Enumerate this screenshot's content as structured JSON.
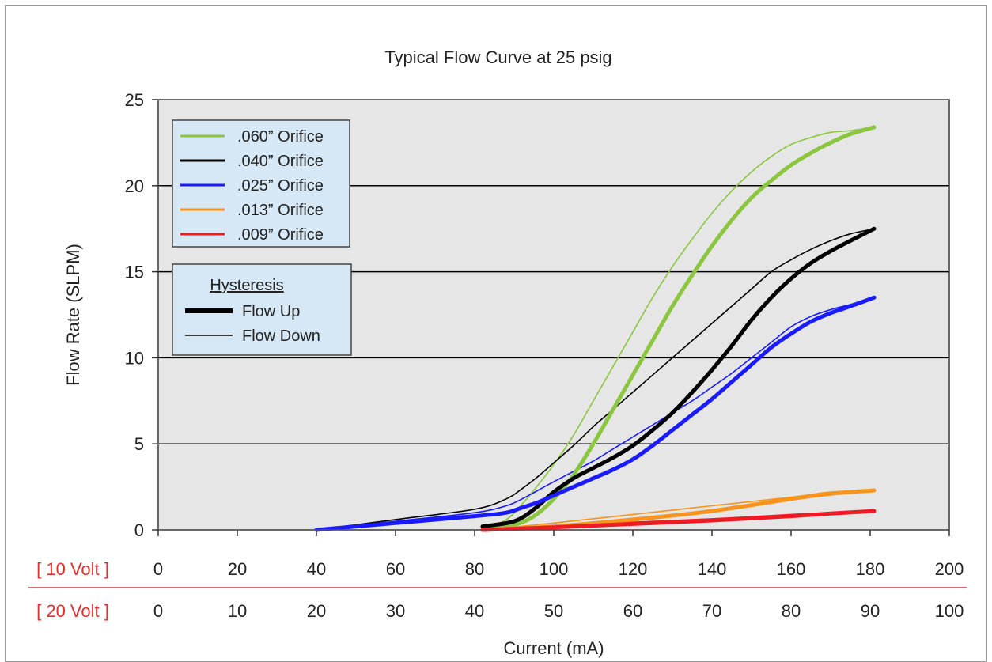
{
  "chart_data": {
    "type": "line",
    "title": "Typical Flow Curve at 25 psig",
    "xlabel": "Current (mA)",
    "ylabel": "Flow Rate (SLPM)",
    "xlim": [
      0,
      200
    ],
    "ylim": [
      0,
      25
    ],
    "x_ticks": [
      0,
      20,
      40,
      60,
      80,
      100,
      120,
      140,
      160,
      180,
      200
    ],
    "y_ticks": [
      0,
      5,
      10,
      15,
      20,
      25
    ],
    "grid": "horizontal",
    "secondary_scales": [
      {
        "label": "[ 10 Volt ]",
        "ticks": [
          "0",
          "20",
          "40",
          "60",
          "80",
          "100",
          "120",
          "140",
          "160",
          "180",
          "200"
        ]
      },
      {
        "label": "[ 20 Volt ]",
        "ticks": [
          "0",
          "10",
          "20",
          "30",
          "40",
          "50",
          "60",
          "70",
          "80",
          "90",
          "100"
        ]
      }
    ],
    "legend": {
      "placement": "top-left",
      "entries": [
        {
          "name": ".060” Orifice",
          "color": "#8cc63f"
        },
        {
          "name": ".040” Orifice",
          "color": "#000000"
        },
        {
          "name": ".025” Orifice",
          "color": "#1a1aff"
        },
        {
          "name": ".013” Orifice",
          "color": "#f7941d"
        },
        {
          "name": ".009” Orifice",
          "color": "#ed1c24"
        }
      ]
    },
    "hysteresis_legend": {
      "title": "Hysteresis",
      "entries": [
        {
          "name": "Flow Up",
          "style": "thick"
        },
        {
          "name": "Flow Down",
          "style": "thin"
        }
      ]
    },
    "series": [
      {
        "name": ".060” Orifice",
        "direction": "Flow Up",
        "color": "#8cc63f",
        "x": [
          82,
          90,
          95,
          100,
          105,
          110,
          115,
          120,
          125,
          130,
          135,
          140,
          145,
          150,
          155,
          160,
          165,
          170,
          175,
          181
        ],
        "y": [
          0,
          0.3,
          0.8,
          1.8,
          3.2,
          5.0,
          7.0,
          9.0,
          11.0,
          13.0,
          14.8,
          16.5,
          18.0,
          19.3,
          20.3,
          21.2,
          21.9,
          22.5,
          23.0,
          23.4
        ]
      },
      {
        "name": ".060” Orifice",
        "direction": "Flow Down",
        "color": "#8cc63f",
        "x": [
          82,
          88,
          92,
          96,
          100,
          105,
          110,
          115,
          120,
          125,
          130,
          135,
          140,
          145,
          150,
          155,
          160,
          165,
          170,
          175,
          181
        ],
        "y": [
          0,
          0.6,
          1.5,
          2.6,
          3.8,
          5.5,
          7.5,
          9.5,
          11.5,
          13.5,
          15.3,
          16.9,
          18.4,
          19.7,
          20.8,
          21.7,
          22.4,
          22.8,
          23.1,
          23.2,
          23.4
        ]
      },
      {
        "name": ".040” Orifice",
        "direction": "Flow Up",
        "color": "#000000",
        "x": [
          82,
          90,
          95,
          100,
          105,
          110,
          115,
          120,
          125,
          130,
          135,
          140,
          145,
          150,
          155,
          160,
          165,
          170,
          175,
          181
        ],
        "y": [
          0.2,
          0.5,
          1.2,
          2.2,
          3.0,
          3.6,
          4.2,
          4.9,
          5.8,
          6.8,
          8.0,
          9.3,
          10.7,
          12.2,
          13.5,
          14.6,
          15.5,
          16.2,
          16.8,
          17.5
        ]
      },
      {
        "name": ".040” Orifice",
        "direction": "Flow Down",
        "color": "#000000",
        "x": [
          40,
          60,
          80,
          88,
          92,
          96,
          100,
          105,
          110,
          115,
          120,
          125,
          130,
          135,
          140,
          145,
          150,
          155,
          160,
          165,
          170,
          175,
          181
        ],
        "y": [
          0,
          0.6,
          1.2,
          1.8,
          2.4,
          3.1,
          3.9,
          4.9,
          6.0,
          7.0,
          8.0,
          9.0,
          10.0,
          11.0,
          12.0,
          13.0,
          14.0,
          15.0,
          15.7,
          16.3,
          16.8,
          17.2,
          17.5
        ]
      },
      {
        "name": ".025” Orifice",
        "direction": "Flow Up",
        "color": "#1a1aff",
        "x": [
          40,
          60,
          80,
          88,
          92,
          96,
          100,
          105,
          110,
          115,
          120,
          125,
          130,
          135,
          140,
          145,
          150,
          155,
          160,
          165,
          170,
          175,
          181
        ],
        "y": [
          0,
          0.4,
          0.8,
          1.0,
          1.3,
          1.6,
          2.0,
          2.5,
          3.0,
          3.5,
          4.1,
          4.9,
          5.8,
          6.7,
          7.6,
          8.6,
          9.6,
          10.6,
          11.4,
          12.1,
          12.6,
          13.0,
          13.5
        ]
      },
      {
        "name": ".025” Orifice",
        "direction": "Flow Down",
        "color": "#1a1aff",
        "x": [
          40,
          60,
          80,
          88,
          92,
          96,
          100,
          105,
          110,
          115,
          120,
          125,
          130,
          135,
          140,
          145,
          150,
          155,
          160,
          165,
          170,
          175,
          181
        ],
        "y": [
          0,
          0.5,
          1.0,
          1.4,
          1.8,
          2.3,
          2.8,
          3.4,
          4.0,
          4.7,
          5.4,
          6.1,
          6.8,
          7.5,
          8.3,
          9.1,
          10.0,
          10.9,
          11.8,
          12.4,
          12.8,
          13.1,
          13.5
        ]
      },
      {
        "name": ".013” Orifice",
        "direction": "Flow Up",
        "color": "#f7941d",
        "x": [
          82,
          100,
          120,
          140,
          160,
          170,
          181
        ],
        "y": [
          0,
          0.2,
          0.6,
          1.1,
          1.8,
          2.1,
          2.3
        ]
      },
      {
        "name": ".013” Orifice",
        "direction": "Flow Down",
        "color": "#f7941d",
        "x": [
          82,
          100,
          120,
          140,
          160,
          170,
          181
        ],
        "y": [
          0,
          0.4,
          0.9,
          1.4,
          1.9,
          2.2,
          2.3
        ]
      },
      {
        "name": ".009” Orifice",
        "direction": "Flow Up",
        "color": "#ed1c24",
        "x": [
          82,
          100,
          120,
          140,
          160,
          170,
          181
        ],
        "y": [
          0,
          0.15,
          0.35,
          0.55,
          0.8,
          0.95,
          1.1
        ]
      },
      {
        "name": ".009” Orifice",
        "direction": "Flow Down",
        "color": "#ed1c24",
        "x": [
          82,
          100,
          120,
          140,
          160,
          170,
          181
        ],
        "y": [
          0,
          0.25,
          0.45,
          0.65,
          0.9,
          1.0,
          1.1
        ]
      }
    ]
  }
}
